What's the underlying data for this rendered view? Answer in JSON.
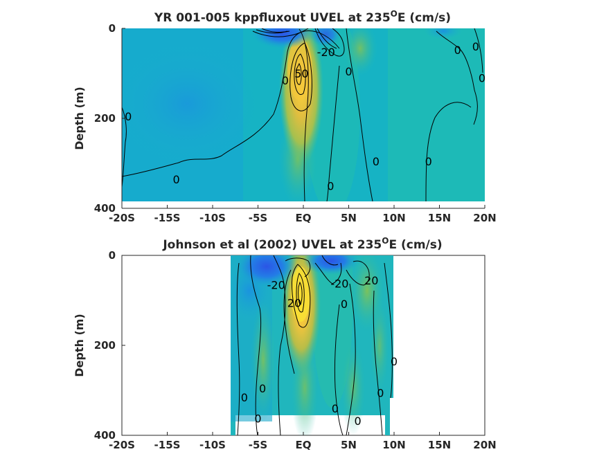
{
  "chart_data": [
    {
      "type": "heatmap",
      "title_main": "YR 001-005 kppfluxout UVEL at 235",
      "title_sup": "O",
      "title_end": "E (cm/s)",
      "ylabel": "Depth (m)",
      "xlabel": "",
      "x_ticks": [
        "-20S",
        "-15S",
        "-10S",
        "-5S",
        "EQ",
        "5N",
        "10N",
        "15N",
        "20N"
      ],
      "y_ticks": [
        "0",
        "200",
        "400"
      ],
      "xlim": [
        -20,
        20
      ],
      "ylim": [
        0,
        400
      ],
      "y_reversed": true,
      "colorscale": "parula",
      "contour_labels": [
        {
          "text": "0",
          "lat": -19.3,
          "depth": 195
        },
        {
          "text": "0",
          "lat": -14,
          "depth": 335
        },
        {
          "text": "0",
          "lat": -2,
          "depth": 115
        },
        {
          "text": "-20",
          "lat": 2.5,
          "depth": 52
        },
        {
          "text": "50",
          "lat": -0.2,
          "depth": 100
        },
        {
          "text": "0",
          "lat": 5,
          "depth": 95
        },
        {
          "text": "0",
          "lat": 3,
          "depth": 350
        },
        {
          "text": "0",
          "lat": 8,
          "depth": 295
        },
        {
          "text": "0",
          "lat": 13.8,
          "depth": 295
        },
        {
          "text": "0",
          "lat": 17,
          "depth": 48
        },
        {
          "text": "0",
          "lat": 19,
          "depth": 40
        },
        {
          "text": "0",
          "lat": 20,
          "depth": 110
        }
      ]
    },
    {
      "type": "heatmap",
      "title_main": "Johnson et al (2002) UVEL at 235",
      "title_sup": "O",
      "title_end": "E (cm/s)",
      "ylabel": "Depth (m)",
      "xlabel": "",
      "x_ticks": [
        "-20S",
        "-15S",
        "-10S",
        "-5S",
        "EQ",
        "5N",
        "10N",
        "15N",
        "20N"
      ],
      "y_ticks": [
        "0",
        "200",
        "400"
      ],
      "xlim": [
        -20,
        20
      ],
      "ylim": [
        0,
        400
      ],
      "y_reversed": true,
      "data_lat_range": [
        -8,
        10
      ],
      "colorscale": "parula",
      "contour_labels": [
        {
          "text": "-20",
          "lat": -3,
          "depth": 65
        },
        {
          "text": "-20",
          "lat": 4,
          "depth": 62
        },
        {
          "text": "20",
          "lat": 7.5,
          "depth": 55
        },
        {
          "text": "20",
          "lat": -1,
          "depth": 105
        },
        {
          "text": "0",
          "lat": 4.5,
          "depth": 108
        },
        {
          "text": "0",
          "lat": -4.5,
          "depth": 295
        },
        {
          "text": "0",
          "lat": -6.5,
          "depth": 315
        },
        {
          "text": "0",
          "lat": -5,
          "depth": 362
        },
        {
          "text": "0",
          "lat": 3.5,
          "depth": 340
        },
        {
          "text": "0",
          "lat": 6,
          "depth": 368
        },
        {
          "text": "0",
          "lat": 8.5,
          "depth": 305
        },
        {
          "text": "0",
          "lat": 10,
          "depth": 235
        }
      ]
    }
  ]
}
